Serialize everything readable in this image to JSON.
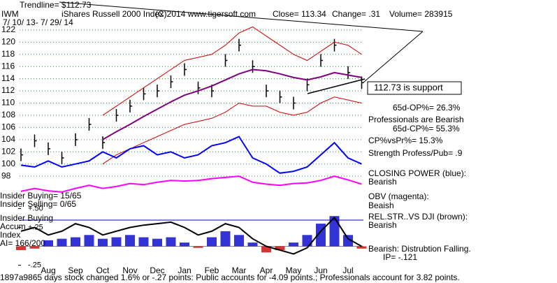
{
  "header": {
    "trendline": "Trendline= $112.73",
    "ticker": "IWM",
    "period": "7/ 10/ 13- 7/ 29/ 14",
    "copyright": "(C)2014 www.tigersoft.com",
    "close": "Close= 113.34",
    "change": "Change= .31",
    "volume": "Volume= 283915"
  },
  "notes": {
    "support": "112.73 is support",
    "op": "65d-OP%= 26.3%",
    "professionals": "Professionals are Bearish",
    "cp": "65d-CP%= 55.3%",
    "cp_vs_pr": "CP%vsPr%= 15.3%",
    "strength": "Strength Profess/Pub= .9",
    "closing_power": "CLOSING POWER (blue):",
    "closing_power_state": "Bearish",
    "obv": "OBV (magenta):",
    "obv_state": "Beaish",
    "rel_str": "REL.STR..VS DJI (brown):",
    "rel_str_state": "Bearish",
    "distribution": "Bearish: Distrubtion Falling.",
    "ip": "IP= -.121",
    "insider_buying": "Insider Buying= 15/65",
    "insider_selling": "Insider Selling= 0/65",
    "insider_label": "Insider Buying",
    "accum": "Accum",
    "index": "Index",
    "ai": "AI= 166/200",
    "footer": "1897a9865 days stock changed 1.6% or -.27 points:  Public accounts for -4.09 points.;  Professionals account for  3.82 points."
  },
  "chart_data": [
    {
      "type": "price",
      "title": "iShares Russell 2000 Index",
      "categories": [
        null,
        null,
        "Aug",
        null,
        "Sep",
        null,
        "Oct",
        null,
        "Nov",
        null,
        "Dec",
        null,
        "Jan",
        null,
        "Feb",
        null,
        "Mar",
        null,
        "Apr",
        null,
        "May",
        null,
        "Jun",
        null,
        "Jul",
        null
      ],
      "ylim": [
        94,
        126
      ],
      "yticks": [
        98,
        100,
        102,
        104,
        106,
        108,
        110,
        112,
        114,
        116,
        118,
        120,
        122
      ],
      "grid": true,
      "series": [
        {
          "style": "ohlc",
          "color": "#000000",
          "values": [
            101.5,
            103.8,
            102.5,
            101,
            104,
            106.5,
            103.5,
            108,
            109.5,
            111.5,
            112,
            113.5,
            115.5,
            112.5,
            112,
            117,
            119.5,
            116,
            112,
            111,
            110,
            113,
            117,
            119.5,
            115,
            113.34
          ]
        },
        {
          "style": "line",
          "color": "#800080",
          "values": [
            null,
            null,
            null,
            null,
            null,
            null,
            104,
            105.3,
            106.5,
            107.8,
            109,
            110.2,
            111.3,
            112,
            112.8,
            113.8,
            114.8,
            115.5,
            115.3,
            114.8,
            114.2,
            113.8,
            114.3,
            115,
            114.6,
            114.2
          ]
        },
        {
          "style": "thin",
          "color": "#cc0000",
          "values": [
            null,
            null,
            null,
            null,
            null,
            null,
            108,
            109.5,
            111,
            112.5,
            114,
            115.5,
            117,
            117.5,
            118,
            119.5,
            121.5,
            122.5,
            121,
            119.5,
            118,
            117,
            118.5,
            120,
            119.5,
            118
          ]
        },
        {
          "style": "thin",
          "color": "#cc0000",
          "values": [
            null,
            null,
            null,
            null,
            null,
            null,
            100,
            101.5,
            102.5,
            103.5,
            104.5,
            105.5,
            106.5,
            107,
            107.5,
            108.5,
            110,
            109.5,
            109.5,
            108.5,
            108,
            108.5,
            110,
            111,
            110.5,
            110
          ]
        },
        {
          "style": "line",
          "color": "#0000ff",
          "values": [
            99.8,
            99.5,
            100.5,
            99.5,
            100,
            100.5,
            102,
            101,
            102.5,
            103,
            101.5,
            102,
            101,
            101.5,
            103,
            103.5,
            104.5,
            101,
            100,
            98.5,
            98.8,
            99.5,
            101.5,
            103.5,
            101,
            100
          ]
        },
        {
          "style": "line",
          "color": "#ff00ff",
          "values": [
            95.5,
            96,
            95.6,
            95.4,
            96,
            96.5,
            96,
            96.3,
            96.8,
            96.6,
            97,
            97.3,
            97.2,
            97.3,
            97.6,
            97.8,
            98,
            97,
            96.7,
            96.5,
            96.8,
            96.9,
            97.3,
            98,
            97.4,
            96.7
          ]
        }
      ]
    },
    {
      "type": "indicator",
      "ylim": [
        -0.3,
        0.55
      ],
      "yticks": [
        {
          "value": 0.5,
          "label": "+.50"
        },
        {
          "value": 0.25,
          "label": "+.25"
        },
        {
          "value": -0.25,
          "label": "-.25"
        }
      ],
      "series": [
        {
          "style": "bars",
          "color": "#0000cc",
          "neg_color": "#cc0000",
          "values": [
            -0.05,
            -0.03,
            0.08,
            0.1,
            0.12,
            0.15,
            0.1,
            0.12,
            0.15,
            0.12,
            0.1,
            0.12,
            0.05,
            -0.02,
            0.12,
            0.2,
            0.15,
            0.05,
            -0.08,
            -0.05,
            0.05,
            0.15,
            0.3,
            0.4,
            0.15,
            -0.03
          ]
        },
        {
          "style": "line",
          "color": "#000000",
          "values": [
            0.2,
            0.25,
            0.15,
            0.2,
            0.3,
            0.25,
            0.15,
            0.2,
            0.25,
            0.28,
            0.3,
            0.32,
            0.25,
            0.15,
            0.2,
            0.3,
            0.25,
            0.1,
            0,
            -0.05,
            -0.1,
            -0.02,
            0.2,
            0.38,
            0.1,
            0
          ]
        }
      ]
    }
  ]
}
